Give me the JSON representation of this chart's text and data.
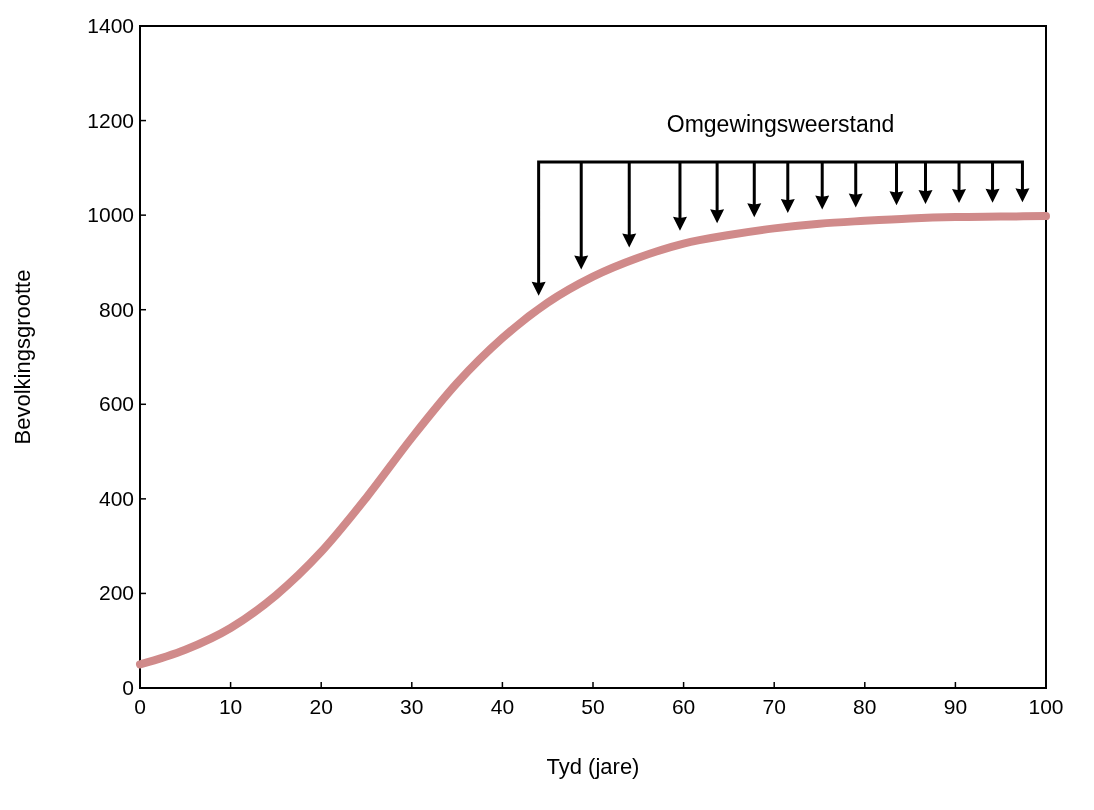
{
  "chart_data": {
    "type": "line",
    "xlabel": "Tyd (jare)",
    "ylabel": "Bevolkingsgrootte",
    "annotations": [
      "Omgewingsweerstand"
    ],
    "x": [
      0,
      5,
      10,
      15,
      20,
      25,
      30,
      35,
      40,
      45,
      50,
      55,
      60,
      65,
      70,
      75,
      80,
      85,
      90,
      95,
      100
    ],
    "series": [
      {
        "color": "#d08a8a",
        "values": [
          50,
          81,
          127,
          196,
          288,
          403,
          529,
          645,
          740,
          815,
          870,
          910,
          940,
          958,
          972,
          982,
          988,
          993,
          996,
          997,
          998
        ]
      }
    ],
    "xlim": [
      0,
      100
    ],
    "xticks": [
      0,
      10,
      20,
      30,
      40,
      50,
      60,
      70,
      80,
      90,
      100
    ],
    "ylim": [
      0,
      1400
    ],
    "yticks": [
      0,
      200,
      400,
      600,
      800,
      1000,
      1200,
      1400
    ],
    "grid": false,
    "marker": "none",
    "line_style": "solid"
  }
}
